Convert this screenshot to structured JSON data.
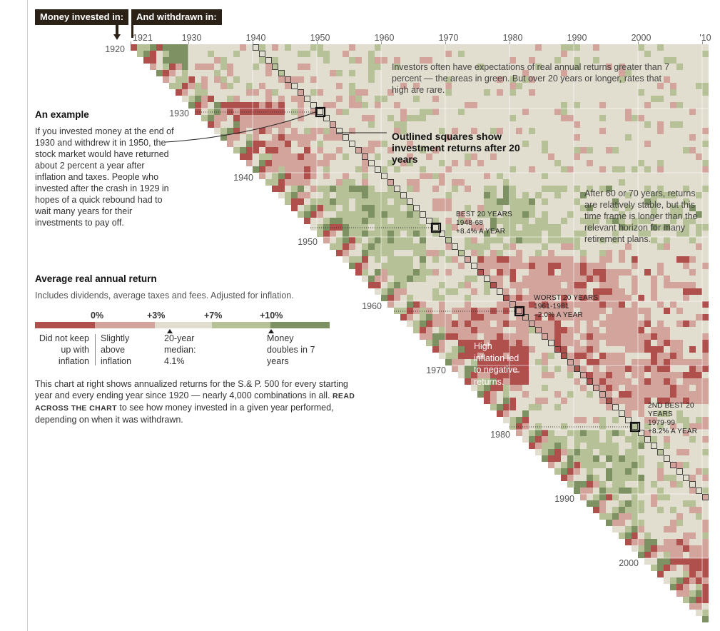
{
  "header": {
    "invested_label": "Money invested in:",
    "withdrawn_label": "And withdrawn in:"
  },
  "colors": {
    "bg_default": "#e2decf",
    "red_dark": "#b0504d",
    "red_light": "#d3a49c",
    "neutral": "#e2decf",
    "green_light": "#b6c197",
    "green_dark": "#7e9162"
  },
  "chart_data": {
    "type": "heatmap",
    "x_axis_label": "And withdrawn in:",
    "y_axis_label": "Money invested in:",
    "x_ticks": [
      "1921",
      "1930",
      "1940",
      "1950",
      "1960",
      "1970",
      "1980",
      "1990",
      "2000",
      "'10"
    ],
    "y_ticks": [
      "1920",
      "1930",
      "1940",
      "1950",
      "1960",
      "1970",
      "1980",
      "1990",
      "2000"
    ],
    "start_year_range": [
      1920,
      2010
    ],
    "end_year_range": [
      1921,
      2011
    ],
    "color_thresholds_percent": [
      "0%",
      "+3%",
      "+7%",
      "+10%"
    ],
    "median_20_year_percent": 4.1,
    "highlighted": [
      {
        "label": "Example",
        "start": 1930,
        "end": 1950,
        "return_percent": 2
      },
      {
        "label": "BEST 20 YEARS",
        "start": 1948,
        "end": 1968,
        "return_percent": 8.4
      },
      {
        "label": "WORST 20 YEARS",
        "start": 1961,
        "end": 1981,
        "return_percent": -2.0
      },
      {
        "label": "2ND BEST 20 YEARS",
        "start": 1979,
        "end": 1999,
        "return_percent": 8.2
      }
    ]
  },
  "sidebar": {
    "example_title": "An example",
    "example_body": "If you invested money at the end of 1930 and withdrew it in 1950, the stock market would have returned about 2 percent a year after inflation and taxes. People who invested after the crash in 1929 in hopes of a quick rebound had to wait many years for their investments to pay off.",
    "legend_title": "Average real annual return",
    "legend_sub": "Includes dividends, average taxes and fees. Adjusted for inflation.",
    "legend_values": [
      "0%",
      "+3%",
      "+7%",
      "+10%"
    ],
    "legend_cat1": "Did not keep up with inflation",
    "legend_cat2": "Slightly above inflation",
    "legend_cat3": "20-year median: 4.1%",
    "legend_cat4": "Money doubles in 7 years",
    "bottom_pre": "This chart at right shows annualized returns for the S.& P. 500 for every starting year and every ending year since 1920 — nearly 4,000 combinations in all.",
    "bottom_caps": "READ ACROSS THE CHART",
    "bottom_post": "to see how money invested in a given year performed, depending on when it was withdrawn."
  },
  "annotations": {
    "green_note": "Investors often have expectations of real annual returns greater than 7 percent — the areas in green. But over 20 years or longer, rates that high are rare.",
    "outlined": "Outlined squares show investment returns after 20 years",
    "long_note": "After 60 or 70 years, returns are relatively stable, but this time frame is longer than the relevant horizon for many retirement plans.",
    "inflation_note": "High inflation led to negative returns.",
    "best_title": "BEST 20 YEARS",
    "best_years": "1948-68",
    "best_value": "+8.4% A YEAR",
    "worst_title": "WORST 20 YEARS",
    "worst_years": "1961-1981",
    "worst_value": "–2.0% A YEAR",
    "second_title": "2ND BEST 20 YEARS",
    "second_years": "1979-99",
    "second_value": "+8.2% A YEAR"
  }
}
